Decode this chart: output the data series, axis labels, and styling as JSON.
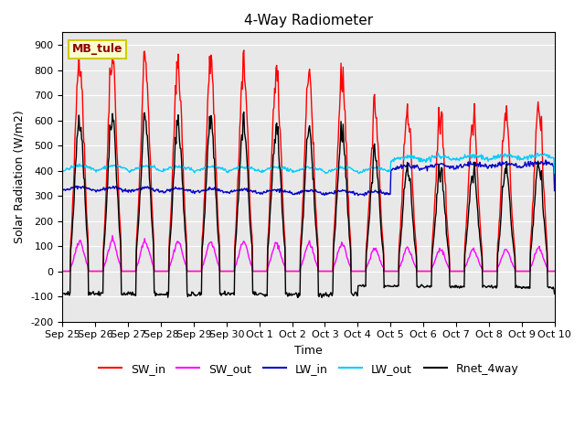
{
  "title": "4-Way Radiometer",
  "xlabel": "Time",
  "ylabel": "Solar Radiation (W/m2)",
  "ylim": [
    -200,
    950
  ],
  "yticks": [
    -200,
    -100,
    0,
    100,
    200,
    300,
    400,
    500,
    600,
    700,
    800,
    900
  ],
  "xtick_labels": [
    "Sep 25",
    "Sep 26",
    "Sep 27",
    "Sep 28",
    "Sep 29",
    "Sep 30",
    "Oct 1",
    "Oct 2",
    "Oct 3",
    "Oct 4",
    "Oct 5",
    "Oct 6",
    "Oct 7",
    "Oct 8",
    "Oct 9",
    "Oct 10"
  ],
  "station_label": "MB_tule",
  "colors": {
    "SW_in": "#ff0000",
    "SW_out": "#ff00ff",
    "LW_in": "#0000cc",
    "LW_out": "#00ccff",
    "Rnet_4way": "#000000"
  },
  "background_color": "#e8e8e8",
  "n_days": 15,
  "hours_per_day": 24,
  "dt_minutes": 30,
  "sw_in_peaks": [
    860,
    850,
    845,
    840,
    835,
    808,
    795,
    785,
    780,
    650,
    640,
    625,
    620,
    610,
    650
  ]
}
